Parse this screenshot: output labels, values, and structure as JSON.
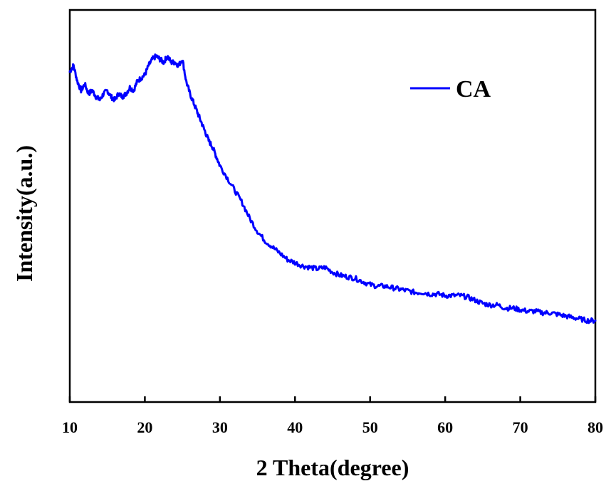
{
  "chart_data": {
    "type": "line",
    "title": "",
    "xlabel": "2 Theta(degree)",
    "ylabel": "Intensity(a.u.)",
    "xlim": [
      10,
      80
    ],
    "ylim": [
      0,
      100
    ],
    "xticks": [
      10,
      20,
      30,
      40,
      50,
      60,
      70,
      80
    ],
    "yticks_shown": false,
    "grid": false,
    "legend": {
      "placement": "top-right",
      "entries": [
        "CA"
      ]
    },
    "series": [
      {
        "name": "CA",
        "color": "#0000ff",
        "x": [
          10,
          10.5,
          11,
          11.5,
          12,
          12.5,
          13,
          13.5,
          14,
          14.5,
          15,
          15.5,
          16,
          16.5,
          17,
          17.5,
          18,
          18.5,
          19,
          19.5,
          20,
          20.5,
          21,
          21.5,
          22,
          22.5,
          23,
          23.5,
          24,
          24.5,
          25,
          25.5,
          26,
          26.5,
          27,
          27.5,
          28,
          28.5,
          29,
          29.5,
          30,
          31,
          32,
          33,
          34,
          35,
          36,
          37,
          38,
          39,
          40,
          41,
          42,
          43,
          44,
          45,
          46,
          47,
          48,
          49,
          50,
          51,
          52,
          53,
          54,
          55,
          56,
          57,
          58,
          59,
          60,
          61,
          62,
          63,
          64,
          65,
          66,
          67,
          68,
          69,
          70,
          71,
          72,
          73,
          74,
          75,
          76,
          77,
          78,
          79,
          80
        ],
        "y": [
          93,
          95,
          90,
          87,
          89,
          86,
          87,
          85,
          84,
          86,
          87,
          85,
          84,
          86,
          85,
          86,
          88,
          87,
          90,
          91,
          92,
          95,
          97,
          98,
          97,
          96,
          98,
          96,
          96,
          95,
          97,
          90,
          86,
          83,
          80,
          77,
          74,
          71,
          69,
          66,
          63,
          59,
          55,
          51,
          46,
          42,
          39,
          37,
          35,
          33,
          32,
          31,
          30.5,
          30,
          30.5,
          29,
          28,
          27.5,
          27,
          26,
          25,
          24.5,
          24.5,
          24,
          23.5,
          23,
          22.5,
          22.5,
          22,
          22,
          21.5,
          21.5,
          21.5,
          21,
          20,
          19,
          18.5,
          18.5,
          17.5,
          17.5,
          17,
          16.5,
          16.5,
          16,
          16,
          15.5,
          15,
          14.5,
          14,
          13.5,
          13.5
        ]
      }
    ]
  }
}
